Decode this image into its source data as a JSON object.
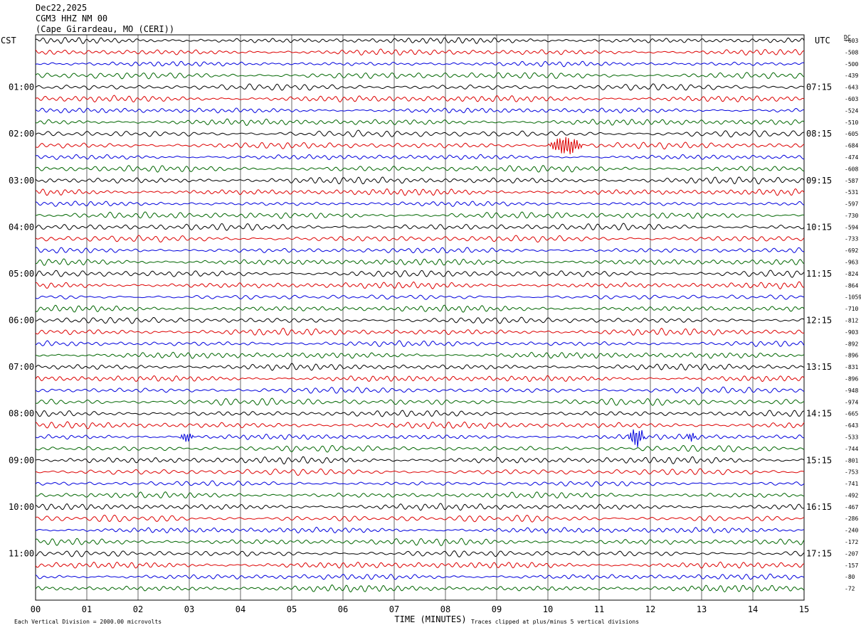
{
  "header": {
    "date": "Dec22,2025",
    "station": "CGM3 HHZ NM 00",
    "location": "(Cape Girardeau, MO (CERI))"
  },
  "left_tz": "CST",
  "right_tz": "UTC",
  "dc_label": "DC",
  "xlabel": "TIME (MINUTES)",
  "footer_left": "Each Vertical Division = 2000.00 microvolts",
  "footer_right": "Traces clipped at plus/minus 5 vertical divisions",
  "colors": {
    "trace1": "#000000",
    "trace2": "#dd0000",
    "trace3": "#0000dd",
    "trace4": "#006600",
    "grid": "#000000"
  },
  "chart_data": {
    "type": "line",
    "title": "CGM3 HHZ NM 00",
    "xlabel": "TIME (MINUTES)",
    "xlim": [
      0,
      15
    ],
    "x_ticks": [
      "00",
      "01",
      "02",
      "03",
      "04",
      "05",
      "06",
      "07",
      "08",
      "09",
      "10",
      "11",
      "12",
      "13",
      "14",
      "15"
    ],
    "left_hour_labels": [
      "01:00",
      "02:00",
      "03:00",
      "04:00",
      "05:00",
      "06:00",
      "07:00",
      "08:00",
      "09:00",
      "10:00",
      "11:00"
    ],
    "right_hour_labels": [
      "07:15",
      "08:15",
      "09:15",
      "10:15",
      "11:15",
      "12:15",
      "13:15",
      "14:15",
      "15:15",
      "16:15",
      "17:15"
    ],
    "dc_offsets": [
      -603,
      -508,
      -500,
      -439,
      -643,
      -603,
      -524,
      -510,
      -605,
      -684,
      -474,
      -608,
      -587,
      -531,
      -597,
      -730,
      -594,
      -733,
      -692,
      -963,
      -824,
      -864,
      -1059,
      -710,
      -812,
      -903,
      -892,
      -896,
      -831,
      -896,
      -948,
      -974,
      -665,
      -643,
      -533,
      -744,
      -801,
      -753,
      -741,
      -492,
      -467,
      -286,
      -240,
      -172,
      -207,
      -157,
      -80,
      -72
    ],
    "trace_minutes_per_line": 15,
    "trace_count": 48,
    "events": [
      {
        "trace": 9,
        "start_min": 10.0,
        "end_min": 10.7,
        "amplitude": "high"
      },
      {
        "trace": 34,
        "start_min": 11.55,
        "end_min": 11.9,
        "amplitude": "high"
      },
      {
        "trace": 34,
        "start_min": 12.7,
        "end_min": 12.9,
        "amplitude": "medium"
      },
      {
        "trace": 34,
        "start_min": 2.8,
        "end_min": 3.1,
        "amplitude": "medium"
      }
    ]
  }
}
